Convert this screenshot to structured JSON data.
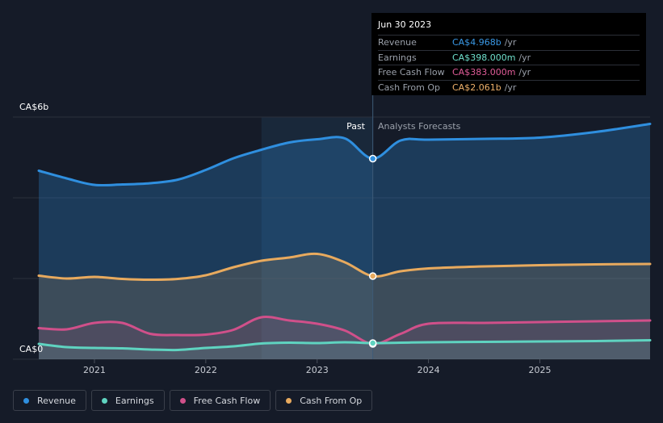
{
  "colors": {
    "revenue": "#2f8fdf",
    "earnings": "#5fd3c0",
    "fcf": "#d0508a",
    "cfo": "#e8aa5e"
  },
  "tooltip": {
    "date": "Jun 30 2023",
    "rows": [
      {
        "label": "Revenue",
        "value": "CA$4.968b",
        "unit": "/yr",
        "color": "#3a9ae8"
      },
      {
        "label": "Earnings",
        "value": "CA$398.000m",
        "unit": "/yr",
        "color": "#6fe0cc"
      },
      {
        "label": "Free Cash Flow",
        "value": "CA$383.000m",
        "unit": "/yr",
        "color": "#e05c98"
      },
      {
        "label": "Cash From Op",
        "value": "CA$2.061b",
        "unit": "/yr",
        "color": "#eeb06a"
      }
    ]
  },
  "legend": [
    {
      "label": "Revenue",
      "color": "#2f8fdf"
    },
    {
      "label": "Earnings",
      "color": "#5fd3c0"
    },
    {
      "label": "Free Cash Flow",
      "color": "#d0508a"
    },
    {
      "label": "Cash From Op",
      "color": "#e8aa5e"
    }
  ],
  "chart_data": {
    "type": "line",
    "y_unit": "CA$ billions",
    "ylim": [
      0,
      6
    ],
    "xlim": [
      2020.5,
      2025.99
    ],
    "y_tick_labels": [
      "CA$6b",
      "CA$0"
    ],
    "x_ticks": [
      2021,
      2022,
      2023,
      2024,
      2025
    ],
    "x_tick_labels": [
      "2021",
      "2022",
      "2023",
      "2024",
      "2025"
    ],
    "past_label": "Past",
    "forecast_label": "Analysts Forecasts",
    "divider_x": 2023.5,
    "highlight_range": [
      2022.5,
      2023.5
    ],
    "series": [
      {
        "name": "Revenue",
        "key": "revenue",
        "x": [
          2020.5,
          2020.75,
          2021.0,
          2021.25,
          2021.5,
          2021.75,
          2022.0,
          2022.25,
          2022.5,
          2022.75,
          2023.0,
          2023.25,
          2023.5,
          2023.75,
          2024.0,
          2024.5,
          2025.0,
          2025.5,
          2025.99
        ],
        "y": [
          4.67,
          4.48,
          4.32,
          4.33,
          4.36,
          4.45,
          4.69,
          4.98,
          5.19,
          5.37,
          5.45,
          5.47,
          4.97,
          5.42,
          5.44,
          5.46,
          5.49,
          5.63,
          5.83
        ]
      },
      {
        "name": "Cash From Op",
        "key": "cfo",
        "x": [
          2020.5,
          2020.75,
          2021.0,
          2021.25,
          2021.5,
          2021.75,
          2022.0,
          2022.25,
          2022.5,
          2022.75,
          2023.0,
          2023.25,
          2023.5,
          2023.75,
          2024.0,
          2024.5,
          2025.0,
          2025.5,
          2025.99
        ],
        "y": [
          2.07,
          2.0,
          2.04,
          1.99,
          1.97,
          1.99,
          2.08,
          2.28,
          2.44,
          2.52,
          2.61,
          2.4,
          2.06,
          2.18,
          2.25,
          2.3,
          2.33,
          2.35,
          2.36
        ]
      },
      {
        "name": "Free Cash Flow",
        "key": "fcf",
        "x": [
          2020.5,
          2020.75,
          2021.0,
          2021.25,
          2021.5,
          2021.75,
          2022.0,
          2022.25,
          2022.5,
          2022.75,
          2023.0,
          2023.25,
          2023.5,
          2023.75,
          2024.0,
          2024.5,
          2025.0,
          2025.5,
          2025.99
        ],
        "y": [
          0.77,
          0.74,
          0.9,
          0.9,
          0.63,
          0.6,
          0.61,
          0.73,
          1.04,
          0.96,
          0.88,
          0.71,
          0.38,
          0.63,
          0.88,
          0.9,
          0.92,
          0.94,
          0.96
        ]
      },
      {
        "name": "Earnings",
        "key": "earnings",
        "x": [
          2020.5,
          2020.75,
          2021.0,
          2021.25,
          2021.5,
          2021.75,
          2022.0,
          2022.25,
          2022.5,
          2022.75,
          2023.0,
          2023.25,
          2023.5,
          2023.75,
          2024.0,
          2024.5,
          2025.0,
          2025.5,
          2025.99
        ],
        "y": [
          0.38,
          0.3,
          0.28,
          0.27,
          0.24,
          0.23,
          0.28,
          0.32,
          0.39,
          0.41,
          0.4,
          0.42,
          0.4,
          0.41,
          0.42,
          0.43,
          0.44,
          0.45,
          0.47
        ]
      }
    ]
  }
}
